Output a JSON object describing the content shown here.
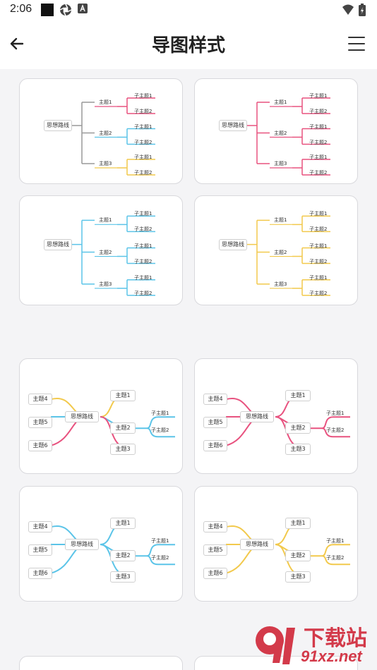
{
  "status": {
    "time": "2:06"
  },
  "appbar": {
    "title": "导图样式"
  },
  "tree": {
    "root": "思想路线",
    "topics": [
      "主题1",
      "主题2",
      "主题3"
    ],
    "sub1": "子主题1",
    "sub2": "子主题2"
  },
  "radial": {
    "root": "思想路线",
    "left": [
      "主题4",
      "主题5",
      "主题6"
    ],
    "right": [
      "主题1",
      "主题2",
      "主题3"
    ],
    "sub1": "子主题1",
    "sub2": "子主题2"
  },
  "cards": [
    {
      "style": "tree",
      "colors": [
        "#999999",
        "#e8527f",
        "#5bc4e8",
        "#f2c94c"
      ]
    },
    {
      "style": "tree",
      "colors": [
        "#e8527f",
        "#e8527f",
        "#e8527f",
        "#e8527f"
      ]
    },
    {
      "style": "tree",
      "colors": [
        "#5bc4e8",
        "#5bc4e8",
        "#5bc4e8",
        "#5bc4e8"
      ]
    },
    {
      "style": "tree",
      "colors": [
        "#f2c94c",
        "#f2c94c",
        "#f2c94c",
        "#f2c94c"
      ]
    },
    {
      "style": "radial",
      "colors": [
        "#f2c94c",
        "#e8527f",
        "#5bc4e8"
      ]
    },
    {
      "style": "radial",
      "colors": [
        "#e8527f",
        "#e8527f",
        "#e8527f"
      ]
    },
    {
      "style": "radial",
      "colors": [
        "#5bc4e8",
        "#5bc4e8",
        "#5bc4e8"
      ]
    },
    {
      "style": "radial",
      "colors": [
        "#f2c94c",
        "#f2c94c",
        "#f2c94c"
      ]
    }
  ],
  "watermark": {
    "text": "下载站",
    "url": "91xz.net",
    "logo": "91"
  }
}
